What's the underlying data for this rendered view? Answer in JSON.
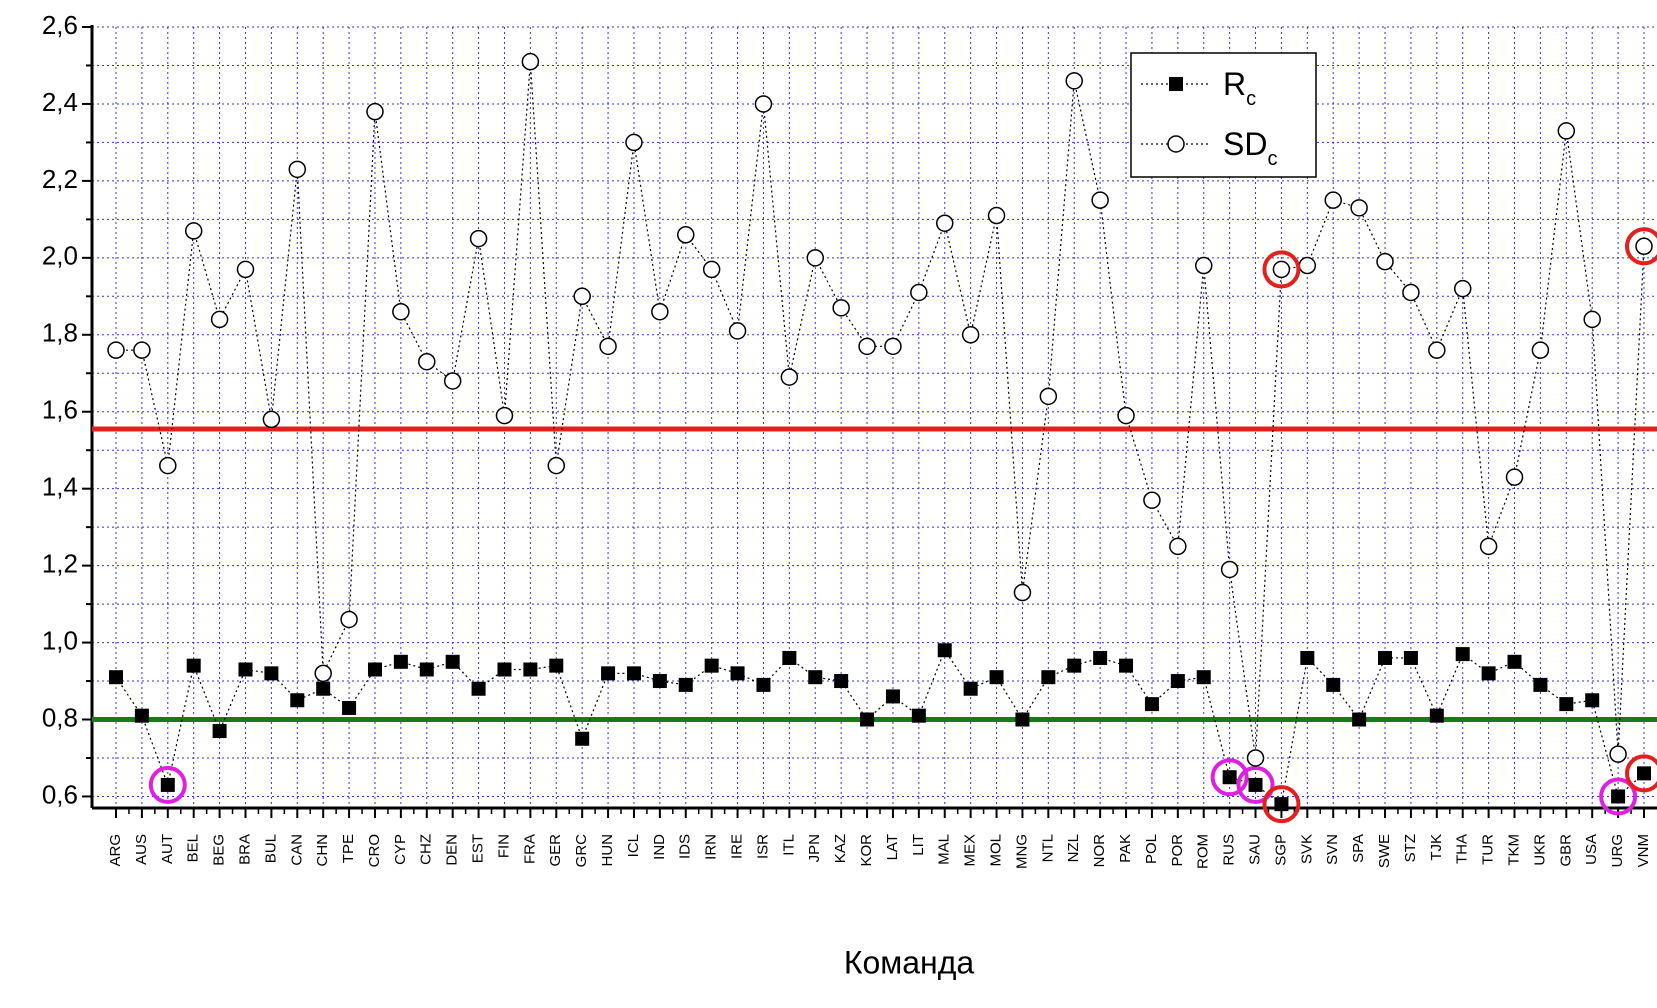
{
  "chart_data": {
    "type": "line",
    "x_label": "Команда",
    "categories": [
      "ARG",
      "AUS",
      "AUT",
      "BEL",
      "BEG",
      "BRA",
      "BUL",
      "CAN",
      "CHN",
      "TPE",
      "CRO",
      "CYP",
      "CHZ",
      "DEN",
      "EST",
      "FIN",
      "FRA",
      "GER",
      "GRC",
      "HUN",
      "ICL",
      "IND",
      "IDS",
      "IRN",
      "IRE",
      "ISR",
      "ITL",
      "JPN",
      "KAZ",
      "KOR",
      "LAT",
      "LIT",
      "MAL",
      "MEX",
      "MOL",
      "MNG",
      "NTL",
      "NZL",
      "NOR",
      "PAK",
      "POL",
      "POR",
      "ROM",
      "RUS",
      "SAU",
      "SGP",
      "SVK",
      "SVN",
      "SPA",
      "SWE",
      "STZ",
      "TJK",
      "THA",
      "TUR",
      "TKM",
      "UKR",
      "GBR",
      "USA",
      "URG",
      "VNM"
    ],
    "series": [
      {
        "name": "R",
        "subscript": "c",
        "marker": "square",
        "color": "#000000",
        "values": [
          0.91,
          0.81,
          0.63,
          0.94,
          0.77,
          0.93,
          0.92,
          0.85,
          0.88,
          0.83,
          0.93,
          0.95,
          0.93,
          0.95,
          0.88,
          0.93,
          0.93,
          0.94,
          0.75,
          0.92,
          0.92,
          0.9,
          0.89,
          0.94,
          0.92,
          0.89,
          0.96,
          0.91,
          0.9,
          0.8,
          0.86,
          0.81,
          0.98,
          0.88,
          0.91,
          0.8,
          0.91,
          0.94,
          0.96,
          0.94,
          0.84,
          0.9,
          0.91,
          0.65,
          0.63,
          0.58,
          0.96,
          0.89,
          0.8,
          0.96,
          0.96,
          0.81,
          0.97,
          0.92,
          0.95,
          0.89,
          0.84,
          0.85,
          0.6,
          0.66
        ],
        "highlights": [
          {
            "category": "AUT",
            "color": "#e020e0"
          },
          {
            "category": "RUS",
            "color": "#e020e0"
          },
          {
            "category": "SAU",
            "color": "#e020e0"
          },
          {
            "category": "SGP",
            "color": "#e3201b"
          },
          {
            "category": "URG",
            "color": "#e020e0"
          },
          {
            "category": "VNM",
            "color": "#e3201b"
          }
        ]
      },
      {
        "name": "SD",
        "subscript": "c",
        "marker": "circle",
        "color": "#000000",
        "values": [
          1.76,
          1.76,
          1.46,
          2.07,
          1.84,
          1.97,
          1.58,
          2.23,
          0.92,
          1.06,
          2.38,
          1.86,
          1.73,
          1.68,
          2.05,
          1.59,
          2.51,
          1.46,
          1.9,
          1.77,
          2.3,
          1.86,
          2.06,
          1.97,
          1.81,
          2.4,
          1.69,
          2.0,
          1.87,
          1.77,
          1.77,
          1.91,
          2.09,
          1.8,
          2.11,
          1.13,
          1.64,
          2.46,
          2.15,
          1.59,
          1.37,
          1.25,
          1.98,
          1.19,
          0.7,
          1.97,
          1.98,
          2.15,
          2.13,
          1.99,
          1.91,
          1.76,
          1.92,
          1.25,
          1.43,
          1.76,
          2.33,
          1.84,
          0.71,
          2.03
        ],
        "highlights": [
          {
            "category": "SGP",
            "color": "#e3201b"
          },
          {
            "category": "VNM",
            "color": "#e3201b"
          }
        ]
      }
    ],
    "reference_lines": [
      {
        "value": 1.555,
        "color": "#e3201b"
      },
      {
        "value": 0.8,
        "color": "#1a7a1a"
      }
    ],
    "ylim": [
      0.57,
      2.6
    ],
    "yticks": [
      {
        "value": 0.6,
        "label": "0,6"
      },
      {
        "value": 0.8,
        "label": "0,8"
      },
      {
        "value": 1.0,
        "label": "1,0"
      },
      {
        "value": 1.2,
        "label": "1,2"
      },
      {
        "value": 1.4,
        "label": "1,4"
      },
      {
        "value": 1.6,
        "label": "1,6"
      },
      {
        "value": 1.8,
        "label": "1,8"
      },
      {
        "value": 2.0,
        "label": "2,0"
      },
      {
        "value": 2.2,
        "label": "2,2"
      },
      {
        "value": 2.4,
        "label": "2,4"
      },
      {
        "value": 2.6,
        "label": "2,6"
      }
    ],
    "grid": true,
    "grid_color": "#3333dd",
    "legend": "upper right"
  }
}
